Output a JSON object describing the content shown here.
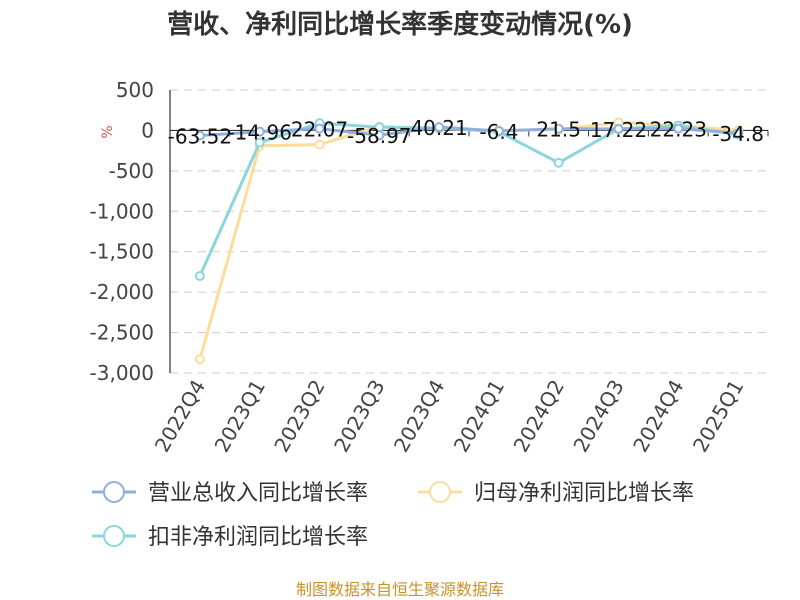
{
  "chart_data": {
    "type": "line",
    "title": "营收、净利同比增长率季度变动情况(%)",
    "unit": "%",
    "categories": [
      "2022Q4",
      "2023Q1",
      "2023Q2",
      "2023Q3",
      "2023Q4",
      "2024Q1",
      "2024Q2",
      "2024Q3",
      "2024Q4",
      "2025Q1"
    ],
    "ylim": [
      -3000,
      500
    ],
    "yticks": [
      500,
      0,
      -500,
      -1000,
      -1500,
      -2000,
      -2500,
      -3000
    ],
    "ytick_labels": [
      "500",
      "0",
      "-500",
      "-1,000",
      "-1,500",
      "-2,000",
      "-2,500",
      "-3,000"
    ],
    "grid": true,
    "legend_position": "bottom",
    "series": [
      {
        "name": "营业总收入同比增长率",
        "color": "#8fb0dc",
        "values": [
          -63.52,
          -14.96,
          22.07,
          -58.97,
          40.21,
          -6.4,
          21.5,
          17.22,
          22.23,
          -34.8
        ],
        "labels": [
          "-63.52",
          "-14.96",
          "22.07",
          "-58.97",
          "40.21",
          "-6.4",
          "21.5",
          "17.22",
          "22.23",
          "-34.8"
        ]
      },
      {
        "name": "归母净利润同比增长率",
        "color": "#fddc9c",
        "values": [
          -2830,
          -190,
          -175,
          50,
          20,
          0,
          10,
          100,
          60,
          0
        ],
        "labels": []
      },
      {
        "name": "扣非净利润同比增长率",
        "color": "#8dd5dc",
        "values": [
          -1800,
          -150,
          90,
          40,
          30,
          -15,
          -400,
          20,
          60,
          -50
        ],
        "labels": []
      }
    ]
  },
  "source": "制图数据来自恒生聚源数据库"
}
